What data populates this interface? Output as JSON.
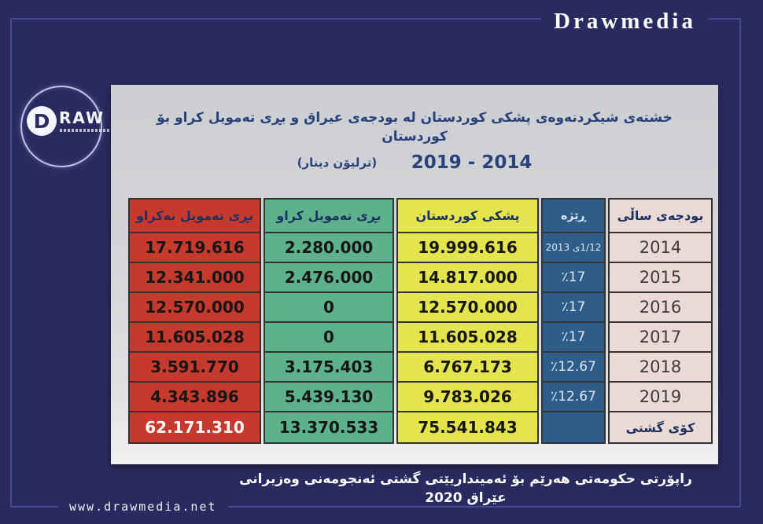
{
  "page": {
    "background": "#2b2a60",
    "frame_color": "#3f4d96"
  },
  "header": {
    "brand": "Drawmedia"
  },
  "footer": {
    "website": "www.drawmedia.net",
    "caption": "راپۆرتی حکومەتی هەرێم بۆ ئەمینداریێتی گشتی ئەنجومەنی وەزیرانی عێراق 2020"
  },
  "logo": {
    "d_letter": "D",
    "raw_text": "RAW"
  },
  "chart_data": {
    "type": "table",
    "title": "خشتەی شیکردنەوەی پشکی کوردستان لە بودجەی عیراق و بڕی تەمویل کراو بۆ کوردستان",
    "period": "2014 - 2019",
    "unit": "(ترلیۆن دینار)",
    "headers": {
      "year": "بودجەی ساڵی",
      "rate": "ڕێژە",
      "share": "پشکی کوردستان",
      "funded": "بڕی تەمویل کراو",
      "unfunded": "بڕی تەمویل نەکراو"
    },
    "column_order_rtl": [
      "year",
      "rate",
      "share",
      "funded",
      "unfunded"
    ],
    "totals_row_label": "کۆی گشتی",
    "rows": [
      {
        "year": "2014",
        "rate": "1/12ی 2013",
        "share": "19.999.616",
        "funded": "2.280.000",
        "unfunded": "17.719.616"
      },
      {
        "year": "2015",
        "rate": "٪17",
        "share": "14.817.000",
        "funded": "2.476.000",
        "unfunded": "12.341.000"
      },
      {
        "year": "2016",
        "rate": "٪17",
        "share": "12.570.000",
        "funded": "0",
        "unfunded": "12.570.000"
      },
      {
        "year": "2017",
        "rate": "٪17",
        "share": "11.605.028",
        "funded": "0",
        "unfunded": "11.605.028"
      },
      {
        "year": "2018",
        "rate": "٪12.67",
        "share": "6.767.173",
        "funded": "3.175.403",
        "unfunded": "3.591.770"
      },
      {
        "year": "2019",
        "rate": "٪12.67",
        "share": "9.783.026",
        "funded": "5.439.130",
        "unfunded": "4.343.896"
      },
      {
        "year": "کۆی گشتی",
        "rate": "",
        "share": "75.541.843",
        "funded": "13.370.533",
        "unfunded": "62.171.310"
      }
    ],
    "colors": {
      "unfunded_column": "#c53a2c",
      "funded_column": "#5db28e",
      "share_column": "#e4e44e",
      "rate_column": "#2e5d89",
      "year_column": "#ead9d6"
    }
  }
}
